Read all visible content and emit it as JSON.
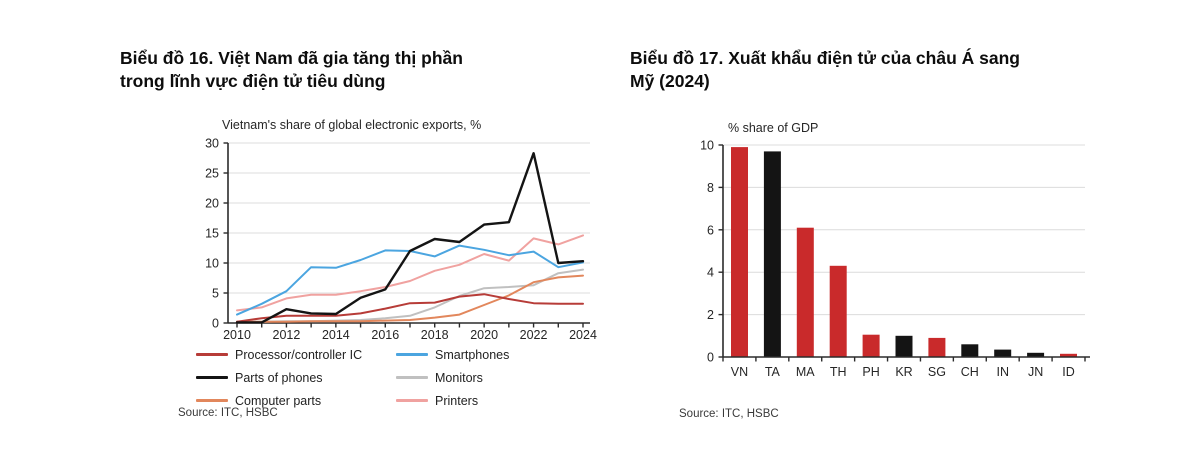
{
  "figures": {
    "left": {
      "title_lines": [
        "Biểu đồ 16. Việt Nam đã gia tăng thị phần",
        "trong lĩnh vực điện tử tiêu dùng"
      ],
      "source": "Source: ITC, HSBC"
    },
    "right": {
      "title_lines": [
        "Biểu đồ 17. Xuất khẩu điện tử của châu Á sang",
        "Mỹ (2024)"
      ],
      "source": "Source: ITC, HSBC"
    }
  },
  "colors": {
    "axis": "#2b2b2b",
    "grid": "#dcdcdc",
    "tick_text": "#262626",
    "bar_red": "#c92a2b",
    "bar_black": "#141414"
  },
  "chart_data": [
    {
      "type": "line",
      "title": "Vietnam's share of global electronic exports, %",
      "x": [
        2010,
        2011,
        2012,
        2013,
        2014,
        2015,
        2016,
        2017,
        2018,
        2019,
        2020,
        2021,
        2022,
        2023,
        2024
      ],
      "xticklabels": [
        "2010",
        "2012",
        "2014",
        "2016",
        "2018",
        "2020",
        "2022",
        "2024"
      ],
      "ylim": [
        0,
        30
      ],
      "yticks": [
        0,
        5,
        10,
        15,
        20,
        25,
        30
      ],
      "grid": true,
      "legend_position": "bottom",
      "series": [
        {
          "name": "Processor/controller IC",
          "color": "#b73c38",
          "values": [
            0.2,
            0.8,
            1.2,
            1.2,
            1.2,
            1.6,
            2.4,
            3.3,
            3.4,
            4.4,
            4.8,
            4.0,
            3.3,
            3.2,
            3.2
          ]
        },
        {
          "name": "Parts of phones",
          "color": "#141414",
          "values": [
            0.1,
            0.1,
            2.3,
            1.6,
            1.5,
            4.2,
            5.6,
            12.0,
            14.0,
            13.5,
            16.4,
            16.8,
            28.3,
            10.0,
            10.3
          ]
        },
        {
          "name": "Computer parts",
          "color": "#e2875c",
          "values": [
            0.2,
            0.2,
            0.2,
            0.3,
            0.3,
            0.3,
            0.4,
            0.5,
            0.9,
            1.4,
            3.0,
            4.6,
            6.8,
            7.6,
            7.9
          ]
        },
        {
          "name": "Smartphones",
          "color": "#4ba5e0",
          "values": [
            1.4,
            3.2,
            5.3,
            9.3,
            9.2,
            10.5,
            12.1,
            12.0,
            11.1,
            12.9,
            12.2,
            11.3,
            11.9,
            9.3,
            10.1
          ]
        },
        {
          "name": "Monitors",
          "color": "#c0c0c0",
          "values": [
            0.2,
            0.2,
            0.3,
            0.3,
            0.4,
            0.5,
            0.8,
            1.2,
            2.6,
            4.5,
            5.8,
            6.0,
            6.3,
            8.3,
            8.9
          ]
        },
        {
          "name": "Printers",
          "color": "#f0a2a0",
          "values": [
            2.1,
            2.6,
            4.1,
            4.7,
            4.7,
            5.3,
            6.0,
            7.0,
            8.7,
            9.7,
            11.5,
            10.4,
            14.1,
            13.1,
            14.6
          ]
        }
      ]
    },
    {
      "type": "bar",
      "title": "% share of GDP",
      "categories": [
        "VN",
        "TA",
        "MA",
        "TH",
        "PH",
        "KR",
        "SG",
        "CH",
        "IN",
        "JN",
        "ID"
      ],
      "values": [
        9.9,
        9.7,
        6.1,
        4.3,
        1.05,
        1.0,
        0.9,
        0.6,
        0.35,
        0.2,
        0.15
      ],
      "bar_colors": [
        "#c92a2b",
        "#141414",
        "#c92a2b",
        "#c92a2b",
        "#c92a2b",
        "#141414",
        "#c92a2b",
        "#141414",
        "#141414",
        "#141414",
        "#c92a2b"
      ],
      "ylim": [
        0,
        10
      ],
      "yticks": [
        0,
        2,
        4,
        6,
        8,
        10
      ],
      "grid": true,
      "legend_position": "none"
    }
  ]
}
